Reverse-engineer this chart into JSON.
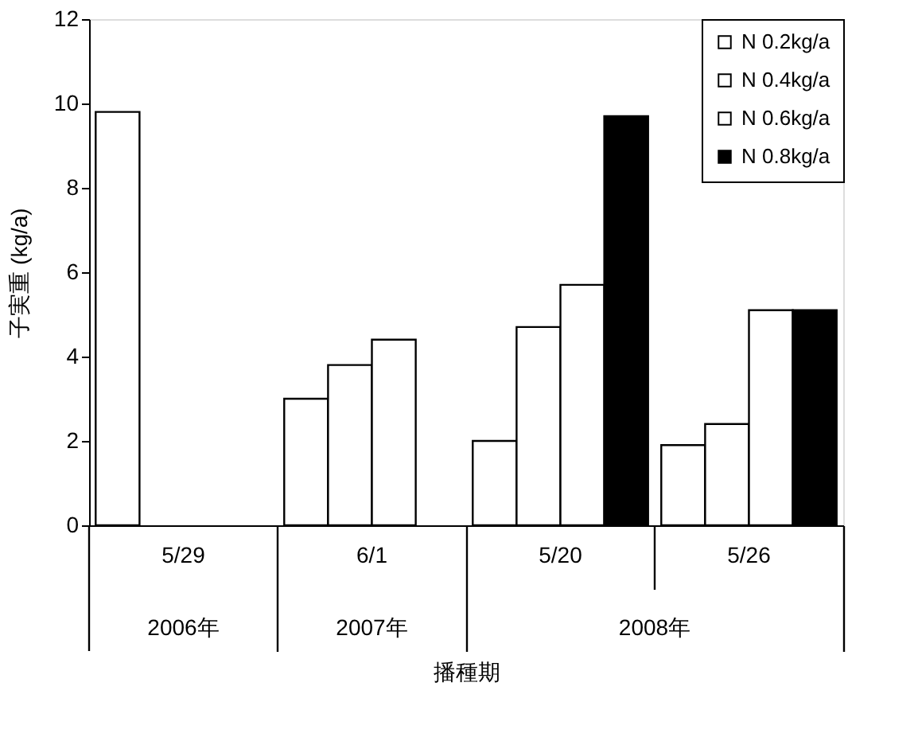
{
  "chart_data": {
    "type": "bar",
    "xlabel": "播種期",
    "ylabel": "子実重 (kg/a)",
    "categories": [
      "5/29",
      "6/1",
      "5/20",
      "5/26"
    ],
    "series": [
      {
        "name": "N 0.2kg/a",
        "color": "#ffffff",
        "values": [
          9.8,
          3.0,
          2.0,
          1.9
        ]
      },
      {
        "name": "N 0.4kg/a",
        "color": "#ffffff",
        "values": [
          null,
          3.8,
          4.7,
          2.4
        ]
      },
      {
        "name": "N 0.6kg/a",
        "color": "#ffffff",
        "values": [
          null,
          4.4,
          5.7,
          5.1
        ]
      },
      {
        "name": "N 0.8kg/a",
        "color": "#000000",
        "values": [
          null,
          null,
          9.7,
          5.1
        ]
      }
    ],
    "annotations": [
      "2006年",
      "2007年",
      "2008年"
    ],
    "ylim": [
      0,
      12
    ],
    "yticks": [
      0,
      2,
      4,
      6,
      8,
      10,
      12
    ],
    "grid": false,
    "legend": "top right"
  }
}
